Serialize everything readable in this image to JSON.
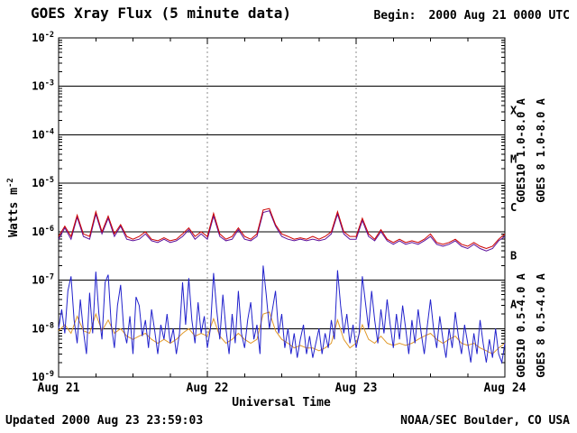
{
  "header": {
    "title": "GOES Xray Flux (5 minute data)",
    "begin_label": "Begin:",
    "begin_value": "2000 Aug 21 0000 UTC"
  },
  "footer": {
    "updated": "Updated 2000 Aug 23 23:59:03",
    "source": "NOAA/SEC Boulder, CO USA"
  },
  "chart_data": {
    "type": "line",
    "title": "GOES Xray Flux (5 minute data)",
    "xlabel": "Universal Time",
    "ylabel": {
      "text": "Watts m",
      "sup": "-2"
    },
    "x_range_hours": [
      0,
      72
    ],
    "x_ticks": [
      {
        "label": "Aug 21",
        "hour": 0
      },
      {
        "label": "Aug 22",
        "hour": 24
      },
      {
        "label": "Aug 23",
        "hour": 48
      },
      {
        "label": "Aug 24",
        "hour": 72
      }
    ],
    "x_minor_tick_hours": 6,
    "y_log_range": [
      -2,
      -9
    ],
    "y_ticks": [
      {
        "base": "10",
        "exp": "-2",
        "value": 0.01
      },
      {
        "base": "10",
        "exp": "-3",
        "value": 0.001
      },
      {
        "base": "10",
        "exp": "-4",
        "value": 0.0001
      },
      {
        "base": "10",
        "exp": "-5",
        "value": 1e-05
      },
      {
        "base": "10",
        "exp": "-6",
        "value": 1e-06
      },
      {
        "base": "10",
        "exp": "-7",
        "value": 1e-07
      },
      {
        "base": "10",
        "exp": "-8",
        "value": 1e-08
      },
      {
        "base": "10",
        "exp": "-9",
        "value": 1e-09
      }
    ],
    "flare_classes": [
      {
        "label": "X",
        "log_center": -3.5
      },
      {
        "label": "M",
        "log_center": -4.5
      },
      {
        "label": "C",
        "log_center": -5.5
      },
      {
        "label": "B",
        "log_center": -6.5
      },
      {
        "label": "A",
        "log_center": -7.5
      }
    ],
    "grid": {
      "h_lines_at_decades": true,
      "v_dashed_at_hours": [
        24,
        48
      ]
    },
    "colors": {
      "axis": "#000000",
      "dashed_grid": "#8c8c8c",
      "background": "#ffffff"
    },
    "legend": [
      {
        "text": "GOES10 1.0-8.0 A",
        "color": "#5c0f9b",
        "column": 0,
        "half": "upper"
      },
      {
        "text": "GOES 8 1.0-8.0 A",
        "color": "#cc0000",
        "column": 1,
        "half": "upper"
      },
      {
        "text": "GOES10 0.5-4.0 A",
        "color": "#e0992a",
        "column": 0,
        "half": "lower"
      },
      {
        "text": "GOES 8 0.5-4.0 A",
        "color": "#2222cc",
        "column": 1,
        "half": "lower"
      }
    ],
    "series": [
      {
        "name": "GOES10 1.0-8.0 A",
        "color": "#5c0f9b",
        "step_hours": 1,
        "scale": 1e-07,
        "values": [
          7,
          12,
          7,
          20,
          8,
          7,
          23,
          9,
          19,
          8,
          13,
          7,
          6.5,
          7,
          9,
          6.5,
          6,
          7,
          6,
          6.5,
          8,
          11,
          7,
          9,
          7,
          21,
          8,
          6.5,
          7,
          11,
          7,
          6.5,
          8,
          25,
          27,
          13,
          8,
          7,
          6.5,
          7,
          6.5,
          7,
          6.5,
          7,
          9,
          23,
          9,
          7,
          7,
          17,
          8,
          6.5,
          10,
          6.5,
          5.5,
          6.5,
          5.5,
          6,
          5.5,
          6.5,
          8,
          5.5,
          5,
          5.5,
          6.5,
          5,
          4.5,
          5.5,
          4.5,
          4,
          4.5,
          6.5,
          8
        ]
      },
      {
        "name": "GOES 8 1.0-8.0 A",
        "color": "#cc0000",
        "step_hours": 1,
        "scale": 1e-07,
        "values": [
          8,
          13,
          8,
          22,
          9,
          8,
          26,
          10,
          21,
          9,
          14,
          8,
          7,
          8,
          10,
          7,
          6.5,
          7.5,
          6.5,
          7,
          9,
          12,
          8,
          10,
          8,
          24,
          9,
          7,
          8,
          12,
          8,
          7,
          9,
          28,
          30,
          14,
          9,
          8,
          7,
          7.5,
          7,
          8,
          7,
          8,
          10,
          26,
          10,
          8,
          8,
          19,
          9,
          7,
          11,
          7,
          6,
          7,
          6,
          6.5,
          6,
          7,
          9,
          6,
          5.5,
          6,
          7,
          5.5,
          5,
          6,
          5,
          4.5,
          5,
          7,
          9
        ]
      },
      {
        "name": "GOES10 0.5-4.0 A",
        "color": "#e0992a",
        "step_hours": 1,
        "scale": 1e-09,
        "values": [
          9,
          12,
          8,
          18,
          9,
          8,
          20,
          9,
          15,
          8,
          10,
          7,
          6,
          7,
          8,
          6,
          5,
          6,
          5,
          6,
          8,
          10,
          7,
          8,
          7,
          16,
          7,
          5,
          6,
          8,
          6,
          5,
          6,
          20,
          22,
          9,
          6,
          5,
          4,
          4.5,
          4,
          4,
          3.5,
          4,
          5,
          15,
          6,
          4,
          5,
          12,
          6,
          5,
          7,
          5,
          4.5,
          5,
          4.5,
          5,
          6,
          7,
          8,
          6,
          5,
          6,
          7,
          5,
          4.5,
          5,
          4,
          3.5,
          3,
          4,
          5
        ]
      },
      {
        "name": "GOES 8 0.5-4.0 A",
        "color": "#2222cc",
        "step_hours": 0.5,
        "scale": 1e-09,
        "values": [
          10,
          25,
          8,
          60,
          120,
          15,
          5,
          40,
          9,
          3,
          55,
          8,
          150,
          20,
          6,
          90,
          130,
          12,
          4,
          30,
          80,
          10,
          5,
          18,
          3,
          45,
          30,
          7,
          15,
          4,
          25,
          9,
          3,
          12,
          6,
          20,
          5,
          10,
          3,
          8,
          90,
          12,
          110,
          15,
          5,
          35,
          8,
          18,
          4,
          10,
          140,
          25,
          6,
          50,
          10,
          3,
          20,
          5,
          60,
          8,
          4,
          15,
          35,
          6,
          12,
          3,
          200,
          50,
          10,
          25,
          60,
          8,
          20,
          4,
          10,
          3,
          8,
          2.5,
          6,
          12,
          3,
          7,
          2.5,
          5,
          10,
          3,
          8,
          4,
          15,
          6,
          160,
          30,
          8,
          20,
          5,
          12,
          4,
          8,
          120,
          35,
          10,
          60,
          15,
          5,
          25,
          8,
          40,
          12,
          4,
          20,
          6,
          30,
          10,
          3,
          15,
          5,
          25,
          8,
          3,
          12,
          40,
          10,
          4,
          18,
          6,
          2.5,
          10,
          4,
          22,
          7,
          3,
          12,
          5,
          2,
          8,
          3,
          15,
          5,
          2,
          6,
          2.5,
          10,
          3,
          2,
          5
        ]
      }
    ]
  }
}
